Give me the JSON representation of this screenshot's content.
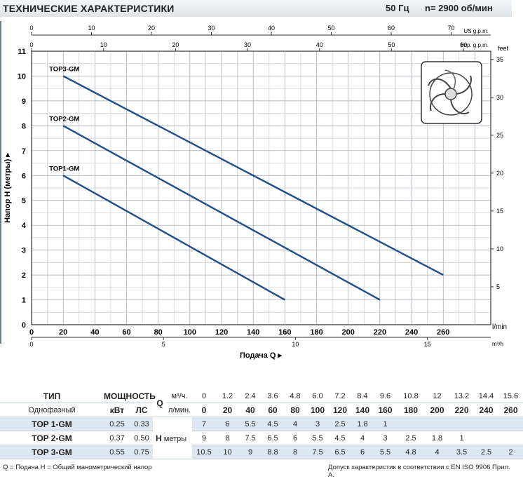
{
  "header": {
    "title": "ТЕХНИЧЕСКИЕ ХАРАКТЕРИСТИКИ",
    "freq": "50 Гц",
    "speed": "n= 2900 об/мин"
  },
  "chart_data": {
    "type": "line",
    "ylabel": "Напор H (метры)",
    "xlabel": "Подача Q",
    "x_unit_main": "l/min",
    "y_unit_right": "feet",
    "top_axis_1_unit": "US g.p.m.",
    "top_axis_2_unit": "Imp. g.p.m.",
    "bottom_axis_2_unit": "m³/h",
    "xlim": [
      0,
      290
    ],
    "ylim": [
      0,
      11
    ],
    "x_ticks": [
      0,
      20,
      40,
      60,
      80,
      100,
      120,
      140,
      160,
      180,
      200,
      220,
      240,
      260
    ],
    "y_ticks": [
      0,
      1,
      2,
      3,
      4,
      5,
      6,
      7,
      8,
      9,
      10,
      11
    ],
    "feet_ticks": [
      5,
      10,
      15,
      20,
      25,
      30,
      35
    ],
    "usgpm_ticks": [
      0,
      10,
      20,
      30,
      40,
      50,
      60,
      70
    ],
    "impgpm_ticks": [
      0,
      10,
      20,
      30,
      40,
      50,
      60
    ],
    "m3h_ticks": [
      0,
      5,
      10,
      15
    ],
    "series": [
      {
        "name": "TOP1-GM",
        "x": [
          20,
          160
        ],
        "y": [
          6,
          1
        ]
      },
      {
        "name": "TOP2-GM",
        "x": [
          20,
          220
        ],
        "y": [
          8,
          1
        ]
      },
      {
        "name": "TOP3-GM",
        "x": [
          20,
          260
        ],
        "y": [
          10,
          2
        ]
      }
    ],
    "grid": true,
    "line_color": "#1f4e8c"
  },
  "table": {
    "h_type": "ТИП",
    "h_power": "МОЩНОСТЬ",
    "h_q": "Q",
    "phase": "Однофазный",
    "kw": "кВт",
    "hp": "ЛС",
    "unit_m3": "м³/ч.",
    "unit_lmin": "л/мин.",
    "h_label": "H",
    "h_unit": "метры",
    "q_m3h": [
      "0",
      "1.2",
      "2.4",
      "3.6",
      "4.8",
      "6.0",
      "7.2",
      "8.4",
      "9.6",
      "10.8",
      "12",
      "13.2",
      "14.4",
      "15.6"
    ],
    "q_lmin": [
      "0",
      "20",
      "40",
      "60",
      "80",
      "100",
      "120",
      "140",
      "160",
      "180",
      "200",
      "220",
      "240",
      "260"
    ],
    "rows": [
      {
        "model": "TOP 1-GM",
        "kw": "0.25",
        "hp": "0.33",
        "h": [
          "7",
          "6",
          "5.5",
          "4.5",
          "4",
          "3",
          "2.5",
          "1.8",
          "1",
          "",
          "",
          "",
          "",
          ""
        ]
      },
      {
        "model": "TOP 2-GM",
        "kw": "0.37",
        "hp": "0.50",
        "h": [
          "9",
          "8",
          "7.5",
          "6.5",
          "6",
          "5.5",
          "4.5",
          "4",
          "3",
          "2.5",
          "1.8",
          "1",
          "",
          ""
        ]
      },
      {
        "model": "TOP 3-GM",
        "kw": "0.55",
        "hp": "0.75",
        "h": [
          "10.5",
          "10",
          "9",
          "8.8",
          "8",
          "7.5",
          "6.5",
          "6",
          "5.5",
          "4.8",
          "4",
          "3.5",
          "2.5",
          "2"
        ]
      }
    ]
  },
  "notes": {
    "left": "Q = Подача   H = Общий манометрический напор",
    "right": "Допуск характеристик в соответствии с EN ISO 9906 Прил. A."
  }
}
